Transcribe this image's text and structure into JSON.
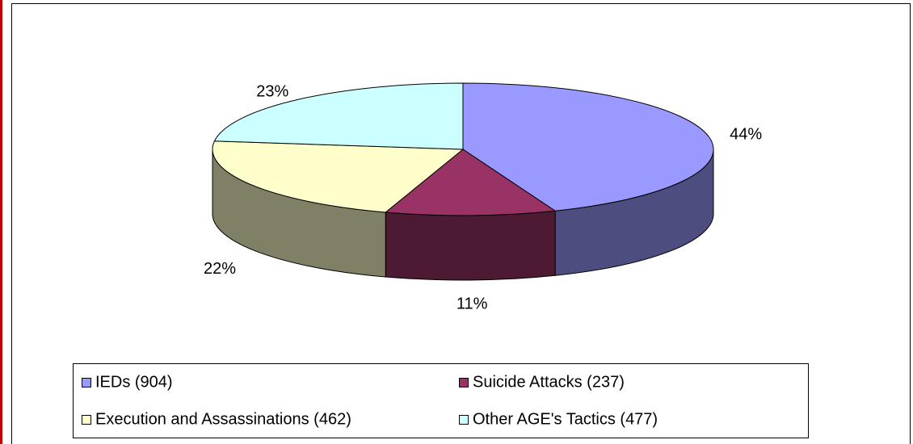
{
  "chart_data": {
    "type": "pie3d",
    "categories": [
      "IEDs (904)",
      "Suicide Attacks (237)",
      "Execution and Assassinations (462)",
      "Other AGE's Tactics (477)"
    ],
    "values": [
      44,
      11,
      22,
      23
    ],
    "value_labels": [
      "44%",
      "11%",
      "22%",
      "23%"
    ],
    "colors": [
      "#9999ff",
      "#993366",
      "#ffffcc",
      "#ccffff"
    ],
    "legend": "bottom"
  }
}
